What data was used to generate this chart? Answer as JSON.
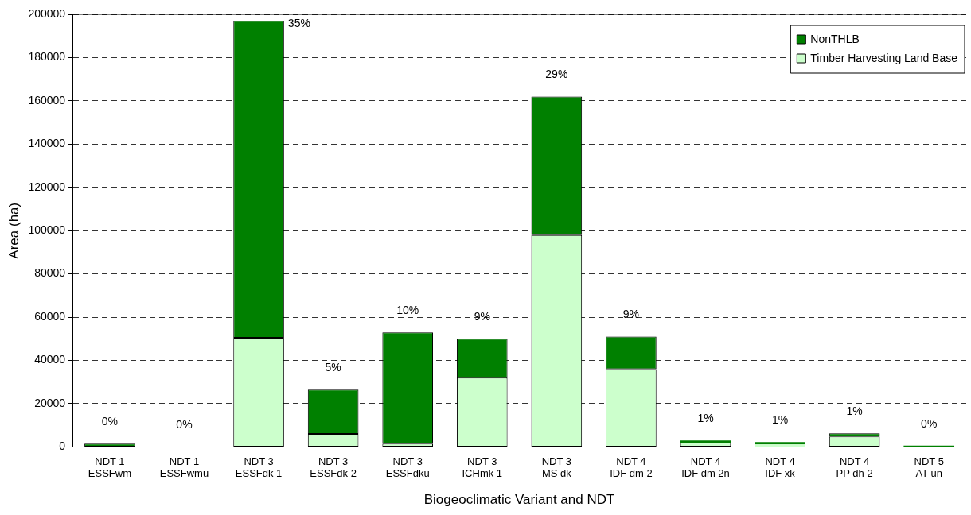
{
  "chart_data": {
    "type": "bar",
    "stacked": true,
    "xlabel": "Biogeoclimatic Variant and NDT",
    "ylabel": "Area (ha)",
    "categories": [
      "NDT 1\nESSFwm",
      "NDT 1\nESSFwmu",
      "NDT 3\nESSFdk 1",
      "NDT 3\nESSFdk 2",
      "NDT 3\nESSFdku",
      "NDT 3\nICHmk 1",
      "NDT 3\nMS dk",
      "NDT 4\nIDF dm 2",
      "NDT 4\nIDF dm 2n",
      "NDT 4\nIDF xk",
      "NDT 4\nPP dh 2",
      "NDT 5\nAT un"
    ],
    "series": [
      {
        "name": "Timber Harvesting Land Base",
        "color": "#ccffcc",
        "values": [
          0,
          0,
          50500,
          6000,
          1500,
          32000,
          98000,
          36000,
          2000,
          1200,
          4800,
          0
        ]
      },
      {
        "name": "NonTHLB",
        "color": "#008000",
        "values": [
          1500,
          0,
          146500,
          20500,
          51500,
          18000,
          64000,
          15000,
          1000,
          1100,
          1500,
          600
        ]
      }
    ],
    "annotations": [
      {
        "text": "0%",
        "x": "NDT 1\nESSFwm",
        "y": 1500
      },
      {
        "text": "0%",
        "x": "NDT 1\nESSFwmu",
        "y": 0
      },
      {
        "text": "35%",
        "x": "NDT 3\nESSFdk 1",
        "y": 197000
      },
      {
        "text": "5%",
        "x": "NDT 3\nESSFdk 2",
        "y": 26500
      },
      {
        "text": "10%",
        "x": "NDT 3\nESSFdku",
        "y": 53000
      },
      {
        "text": "9%",
        "x": "NDT 3\nICHmk 1",
        "y": 50000
      },
      {
        "text": "29%",
        "x": "NDT 3\nMS dk",
        "y": 162000
      },
      {
        "text": "9%",
        "x": "NDT 4\nIDF dm 2",
        "y": 51000
      },
      {
        "text": "1%",
        "x": "NDT 4\nIDF dm 2n",
        "y": 3000
      },
      {
        "text": "1%",
        "x": "NDT 4\nIDF xk",
        "y": 2300
      },
      {
        "text": "1%",
        "x": "NDT 4\nPP dh 2",
        "y": 6300
      },
      {
        "text": "0%",
        "x": "NDT 5\nAT un",
        "y": 600
      }
    ],
    "ylim": [
      0,
      200000
    ],
    "yticks": [
      0,
      20000,
      40000,
      60000,
      80000,
      100000,
      120000,
      140000,
      160000,
      180000,
      200000
    ],
    "grid": "y",
    "line_style": "dashed",
    "legend": "top right"
  }
}
